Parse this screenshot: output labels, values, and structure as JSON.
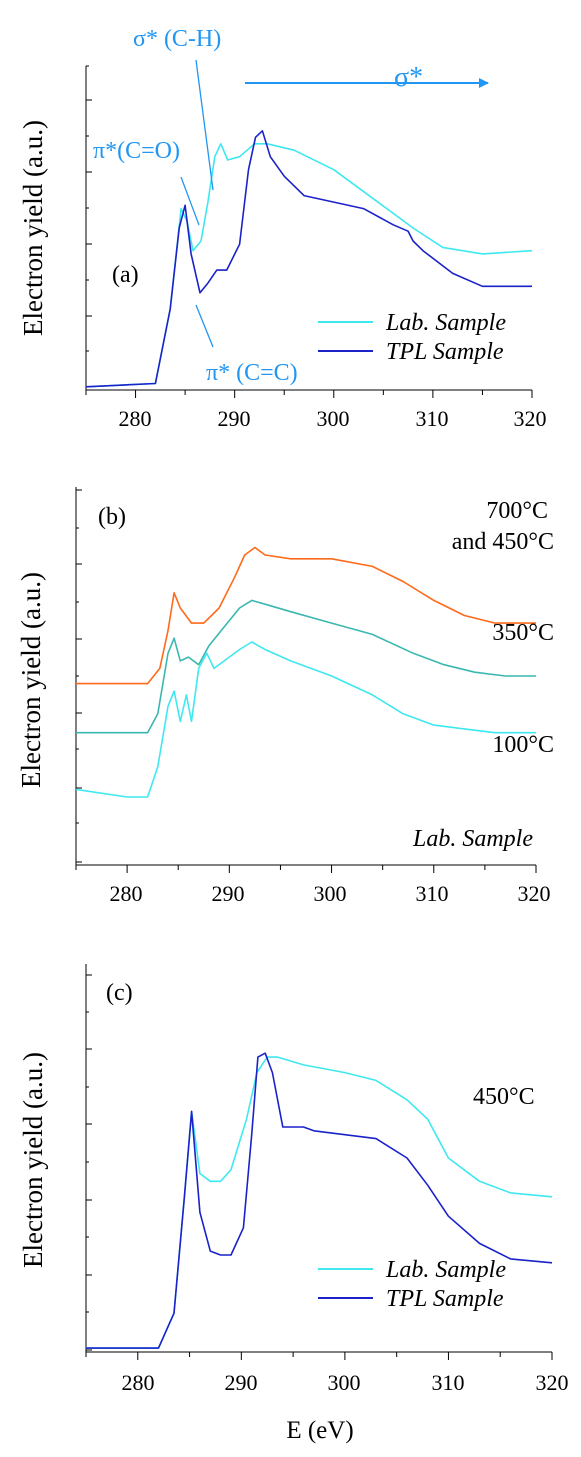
{
  "chart_data": [
    {
      "panel": "(a)",
      "type": "line",
      "ylabel": "Electron yield (a.u.)",
      "xlim": [
        275,
        320
      ],
      "xticks": [
        "280",
        "290",
        "300",
        "310",
        "320"
      ],
      "legend_position": "bottom-right",
      "series": [
        {
          "name": "Lab.  Sample",
          "color": "#3fe8f0",
          "x": [
            275,
            282,
            283.5,
            284.6,
            285.2,
            285.8,
            286.6,
            287.3,
            288,
            288.6,
            289.3,
            290.5,
            292,
            293.3,
            296,
            300,
            304,
            308,
            311,
            315,
            320
          ],
          "y": [
            0.01,
            0.02,
            0.25,
            0.56,
            0.52,
            0.43,
            0.46,
            0.58,
            0.72,
            0.76,
            0.71,
            0.72,
            0.76,
            0.76,
            0.74,
            0.68,
            0.59,
            0.5,
            0.44,
            0.42,
            0.43
          ]
        },
        {
          "name": "TPL  Sample",
          "color": "#1a22c8",
          "x": [
            275,
            282,
            283.5,
            284.4,
            285,
            285.6,
            286.5,
            287.3,
            288.2,
            289.2,
            290.5,
            291.4,
            292.1,
            292.8,
            293.6,
            295,
            297,
            300,
            303,
            306,
            307.5,
            308,
            309,
            312,
            315,
            320
          ],
          "y": [
            0.01,
            0.02,
            0.25,
            0.5,
            0.57,
            0.42,
            0.3,
            0.33,
            0.37,
            0.37,
            0.45,
            0.68,
            0.78,
            0.8,
            0.72,
            0.66,
            0.6,
            0.58,
            0.56,
            0.51,
            0.49,
            0.46,
            0.43,
            0.36,
            0.32,
            0.32
          ]
        }
      ],
      "annotations": {
        "sigma_ch": "σ* (C-H)",
        "sigma": "σ*",
        "pi_co": "π*(C=O)",
        "pi_cc": "π* (C=C)"
      }
    },
    {
      "panel": "(b)",
      "type": "line",
      "ylabel": "Electron yield (a.u.)",
      "xlim": [
        275,
        320
      ],
      "xticks": [
        "280",
        "290",
        "300",
        "310",
        "320"
      ],
      "note": "Lab.  Sample",
      "series": [
        {
          "name": "700°C and 450°C",
          "color": "#ff6a1a",
          "x": [
            275,
            282,
            283.2,
            284,
            284.6,
            285.2,
            286.3,
            287.5,
            289,
            290.5,
            291.5,
            292.5,
            293.5,
            296,
            300,
            304,
            307,
            310,
            313,
            316,
            320
          ],
          "y": [
            0.48,
            0.48,
            0.52,
            0.62,
            0.72,
            0.68,
            0.64,
            0.64,
            0.68,
            0.76,
            0.82,
            0.84,
            0.82,
            0.81,
            0.81,
            0.79,
            0.75,
            0.7,
            0.66,
            0.64,
            0.64
          ]
        },
        {
          "name": "350°C",
          "color": "#3ab8b0",
          "x": [
            275,
            282,
            283,
            284,
            284.6,
            285.2,
            286,
            287,
            288,
            289.5,
            291,
            292.2,
            293.5,
            296,
            300,
            304,
            308,
            311,
            314,
            317,
            320
          ],
          "y": [
            0.35,
            0.35,
            0.4,
            0.56,
            0.6,
            0.54,
            0.55,
            0.53,
            0.58,
            0.63,
            0.68,
            0.7,
            0.69,
            0.67,
            0.64,
            0.61,
            0.56,
            0.53,
            0.51,
            0.5,
            0.5
          ]
        },
        {
          "name": "100°C",
          "color": "#3fe8f0",
          "x": [
            275,
            280,
            282,
            283,
            284,
            284.6,
            285.2,
            285.8,
            286.3,
            287,
            287.8,
            288.5,
            289.5,
            291,
            292.2,
            293.5,
            296,
            300,
            304,
            307,
            310,
            313,
            316,
            320
          ],
          "y": [
            0.2,
            0.18,
            0.18,
            0.26,
            0.42,
            0.46,
            0.38,
            0.45,
            0.38,
            0.52,
            0.56,
            0.52,
            0.54,
            0.57,
            0.59,
            0.57,
            0.54,
            0.5,
            0.45,
            0.4,
            0.37,
            0.36,
            0.35,
            0.35
          ]
        }
      ]
    },
    {
      "panel": "(c)",
      "type": "line",
      "ylabel": "Electron yield (a.u.)",
      "xlabel": "E (eV)",
      "xlim": [
        275,
        320
      ],
      "xticks": [
        "280",
        "290",
        "300",
        "310",
        "320"
      ],
      "note": "450°C",
      "legend_position": "bottom-right",
      "series": [
        {
          "name": "Lab.  Sample",
          "color": "#3fe8f0",
          "x": [
            275,
            282,
            283.5,
            284.5,
            285.2,
            286,
            287,
            288,
            289,
            290.5,
            291.5,
            292.5,
            293.5,
            296,
            300,
            303,
            306,
            308,
            310,
            313,
            316,
            320
          ],
          "y": [
            0.01,
            0.01,
            0.1,
            0.4,
            0.62,
            0.46,
            0.44,
            0.44,
            0.47,
            0.6,
            0.72,
            0.76,
            0.76,
            0.74,
            0.72,
            0.7,
            0.65,
            0.6,
            0.5,
            0.44,
            0.41,
            0.4
          ]
        },
        {
          "name": "TPL  Sample",
          "color": "#1a22c8",
          "x": [
            275,
            282,
            283.5,
            284.5,
            285.2,
            286,
            287,
            288,
            289,
            290.2,
            291,
            291.6,
            292.3,
            293,
            294,
            296,
            297,
            300,
            303,
            306,
            308,
            310,
            313,
            316,
            320
          ],
          "y": [
            0.01,
            0.01,
            0.1,
            0.4,
            0.62,
            0.36,
            0.26,
            0.25,
            0.25,
            0.32,
            0.56,
            0.76,
            0.77,
            0.72,
            0.58,
            0.58,
            0.57,
            0.56,
            0.55,
            0.5,
            0.43,
            0.35,
            0.28,
            0.24,
            0.23
          ]
        }
      ]
    }
  ]
}
